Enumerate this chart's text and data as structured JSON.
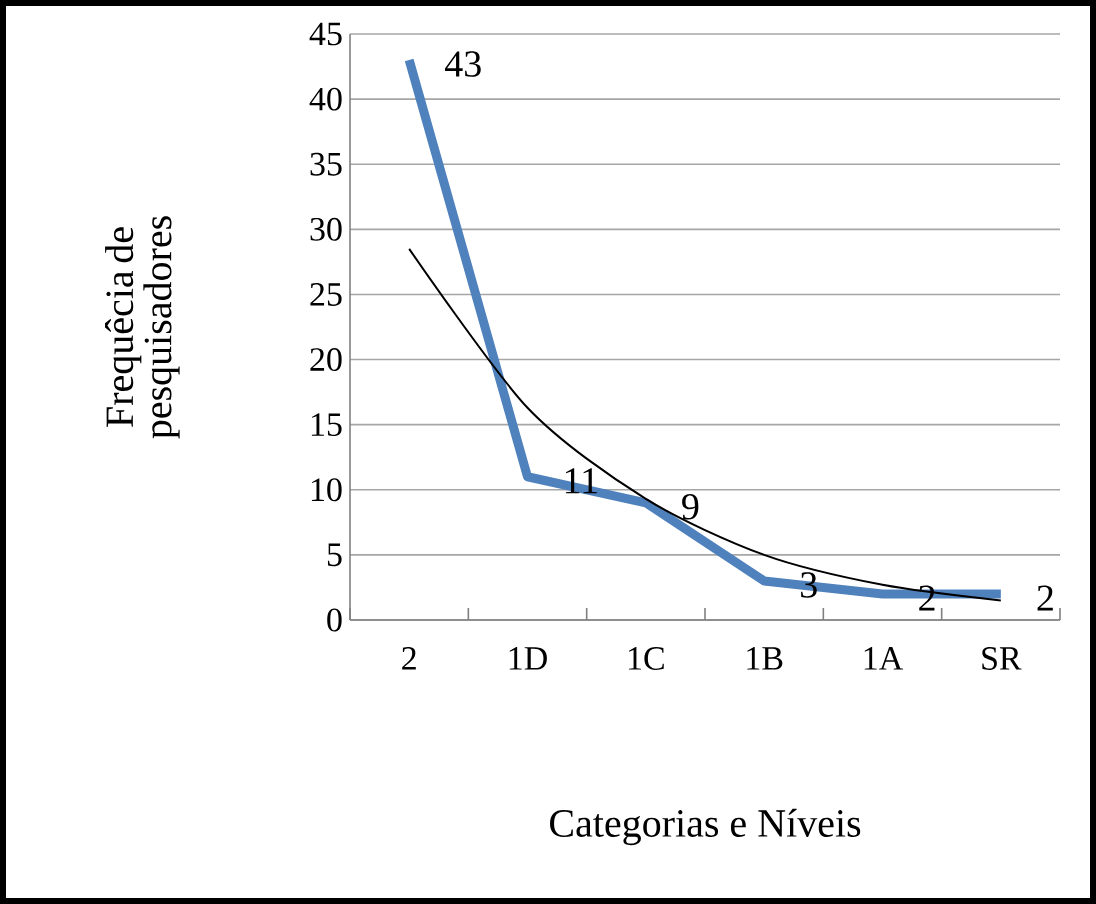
{
  "chart_data": {
    "type": "line",
    "xlabel": "Categorias e Níveis",
    "ylabel": "Frequêcia de pesquisadores",
    "categories": [
      "2",
      "1D",
      "1C",
      "1B",
      "1A",
      "SR"
    ],
    "series": [
      {
        "color": "#4f81bd",
        "values": [
          43,
          11,
          9,
          3,
          2,
          2
        ],
        "data_labels": true
      },
      {
        "type": "line",
        "color": "#000000",
        "values": [
          28.5,
          16.3,
          9.3,
          5.0,
          2.7,
          1.5
        ]
      }
    ],
    "ylim": [
      0,
      45
    ],
    "yticks": [
      0,
      5,
      10,
      15,
      20,
      25,
      30,
      35,
      40,
      45
    ],
    "grid": "y",
    "marker": "none"
  }
}
